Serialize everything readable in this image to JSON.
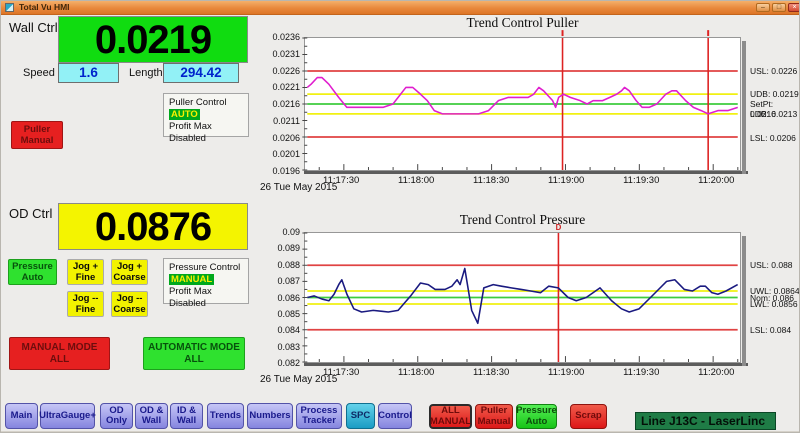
{
  "window": {
    "title": "Total Vu HMI",
    "controls": {
      "minimize": "–",
      "restore": "□",
      "close": "×"
    }
  },
  "wall": {
    "label": "Wall Ctrl",
    "value": "0.0219",
    "speed_label": "Speed",
    "speed_value": "1.6",
    "length_label": "Length",
    "length_value": "294.42",
    "control_box": {
      "title": "Puller Control",
      "mode": "AUTO",
      "note": "Profit Max Disabled"
    },
    "manual_button": "Puller\nManual"
  },
  "od": {
    "label": "OD Ctrl",
    "value": "0.0876",
    "auto_button": "Pressure\nAuto",
    "jog_buttons": [
      "Jog +\nFine",
      "Jog +\nCoarse",
      "Jog --\nFine",
      "Jog --\nCoarse"
    ],
    "control_box": {
      "title": "Pressure Control",
      "mode": "MANUAL",
      "note": "Profit Max Disabled"
    }
  },
  "mode_buttons": {
    "manual_all": "MANUAL MODE\nALL",
    "automatic_all": "AUTOMATIC MODE\nALL"
  },
  "chart_data": [
    {
      "type": "line",
      "title": "Trend Control Puller",
      "date_label": "26 Tue May 2015",
      "ylim": [
        0.0196,
        0.0236
      ],
      "yticks": [
        "0.0236",
        "0.0231",
        "0.0226",
        "0.0221",
        "0.0216",
        "0.0211",
        "0.0206",
        "0.0201",
        "0.0196"
      ],
      "xticks": [
        {
          "label": "11:17:30",
          "f": 0.085
        },
        {
          "label": "11:18:00",
          "f": 0.2566
        },
        {
          "label": "11:18:30",
          "f": 0.4283
        },
        {
          "label": "11:19:00",
          "f": 0.6
        },
        {
          "label": "11:19:30",
          "f": 0.7717
        },
        {
          "label": "11:20:00",
          "f": 0.9434
        }
      ],
      "ref_lines": [
        {
          "name": "USL",
          "value": 0.0226,
          "color": "red"
        },
        {
          "name": "UDB",
          "value": 0.0219,
          "color": "yellow"
        },
        {
          "name": "SetPt",
          "value": 0.0216,
          "color": "green"
        },
        {
          "name": "LDB",
          "value": 0.0213,
          "color": "yellow"
        },
        {
          "name": "LSL",
          "value": 0.0206,
          "color": "red"
        }
      ],
      "right_labels": [
        {
          "text": "USL: 0.0226",
          "value": 0.0226
        },
        {
          "text": "UDB: 0.0219",
          "value": 0.0219
        },
        {
          "text": "SetPt: 0.0216",
          "value": 0.0216
        },
        {
          "text": "LDB: 0.0213",
          "value": 0.0213
        },
        {
          "text": "LSL: 0.0206",
          "value": 0.0206
        }
      ],
      "cursors": [
        {
          "f": 0.593,
          "label": ""
        },
        {
          "f": 0.9313,
          "label": ""
        }
      ],
      "series": [
        {
          "name": "Wall",
          "color": "#e01ece",
          "points": [
            [
              0.0,
              0.0221
            ],
            [
              0.009,
              0.0222
            ],
            [
              0.023,
              0.0224
            ],
            [
              0.034,
              0.0224
            ],
            [
              0.05,
              0.0222
            ],
            [
              0.073,
              0.0218
            ],
            [
              0.092,
              0.0215
            ],
            [
              0.114,
              0.0215
            ],
            [
              0.147,
              0.0215
            ],
            [
              0.176,
              0.0215
            ],
            [
              0.199,
              0.0216
            ],
            [
              0.229,
              0.0221
            ],
            [
              0.245,
              0.0221
            ],
            [
              0.263,
              0.0219
            ],
            [
              0.279,
              0.0217
            ],
            [
              0.295,
              0.0214
            ],
            [
              0.314,
              0.0213
            ],
            [
              0.359,
              0.0213
            ],
            [
              0.398,
              0.0213
            ],
            [
              0.421,
              0.0214
            ],
            [
              0.444,
              0.0217
            ],
            [
              0.467,
              0.0218
            ],
            [
              0.49,
              0.0218
            ],
            [
              0.513,
              0.0218
            ],
            [
              0.526,
              0.0219
            ],
            [
              0.538,
              0.0221
            ],
            [
              0.549,
              0.022
            ],
            [
              0.57,
              0.0217
            ],
            [
              0.577,
              0.0215
            ],
            [
              0.584,
              0.0218
            ],
            [
              0.595,
              0.0219
            ],
            [
              0.611,
              0.0218
            ],
            [
              0.634,
              0.0217
            ],
            [
              0.65,
              0.0216
            ],
            [
              0.664,
              0.0217
            ],
            [
              0.686,
              0.0217
            ],
            [
              0.703,
              0.0218
            ],
            [
              0.719,
              0.0219
            ],
            [
              0.73,
              0.022
            ],
            [
              0.737,
              0.0221
            ],
            [
              0.748,
              0.022
            ],
            [
              0.764,
              0.0217
            ],
            [
              0.778,
              0.0215
            ],
            [
              0.794,
              0.0215
            ],
            [
              0.812,
              0.0216
            ],
            [
              0.833,
              0.0219
            ],
            [
              0.847,
              0.022
            ],
            [
              0.858,
              0.022
            ],
            [
              0.879,
              0.0217
            ],
            [
              0.897,
              0.0215
            ],
            [
              0.915,
              0.0214
            ],
            [
              0.931,
              0.0213
            ],
            [
              0.954,
              0.0214
            ],
            [
              0.977,
              0.0214
            ],
            [
              1.0,
              0.0215
            ]
          ]
        }
      ]
    },
    {
      "type": "line",
      "title": "Trend Control Pressure",
      "date_label": "26 Tue May 2015",
      "ylim": [
        0.082,
        0.09
      ],
      "yticks": [
        "0.09",
        "0.089",
        "0.088",
        "0.087",
        "0.086",
        "0.085",
        "0.084",
        "0.083",
        "0.082"
      ],
      "xticks": [
        {
          "label": "11:17:30",
          "f": 0.085
        },
        {
          "label": "11:18:00",
          "f": 0.2566
        },
        {
          "label": "11:18:30",
          "f": 0.4283
        },
        {
          "label": "11:19:00",
          "f": 0.6
        },
        {
          "label": "11:19:30",
          "f": 0.7717
        },
        {
          "label": "11:20:00",
          "f": 0.9434
        }
      ],
      "ref_lines": [
        {
          "name": "USL",
          "value": 0.088,
          "color": "red"
        },
        {
          "name": "UWL",
          "value": 0.0864,
          "color": "yellow"
        },
        {
          "name": "Nom",
          "value": 0.086,
          "color": "green"
        },
        {
          "name": "LWL",
          "value": 0.0856,
          "color": "yellow"
        },
        {
          "name": "LSL",
          "value": 0.084,
          "color": "red"
        }
      ],
      "right_labels": [
        {
          "text": "USL: 0.088",
          "value": 0.088
        },
        {
          "text": "UWL: 0.0864",
          "value": 0.0864
        },
        {
          "text": "Nom: 0.086",
          "value": 0.086
        },
        {
          "text": "LWL: 0.0856",
          "value": 0.0856
        },
        {
          "text": "LSL: 0.084",
          "value": 0.084
        }
      ],
      "cursors": [
        {
          "f": 0.5835,
          "label": "D"
        }
      ],
      "series": [
        {
          "name": "Pressure",
          "color": "#1a1a80",
          "points": [
            [
              0.0,
              0.086
            ],
            [
              0.016,
              0.0861
            ],
            [
              0.034,
              0.0859
            ],
            [
              0.05,
              0.0858
            ],
            [
              0.062,
              0.0862
            ],
            [
              0.073,
              0.0868
            ],
            [
              0.08,
              0.0871
            ],
            [
              0.092,
              0.0862
            ],
            [
              0.108,
              0.0853
            ],
            [
              0.126,
              0.0851
            ],
            [
              0.153,
              0.0852
            ],
            [
              0.188,
              0.0851
            ],
            [
              0.211,
              0.0852
            ],
            [
              0.227,
              0.0857
            ],
            [
              0.24,
              0.0861
            ],
            [
              0.263,
              0.0869
            ],
            [
              0.281,
              0.0868
            ],
            [
              0.297,
              0.0865
            ],
            [
              0.32,
              0.0865
            ],
            [
              0.336,
              0.0867
            ],
            [
              0.348,
              0.0871
            ],
            [
              0.355,
              0.0868
            ],
            [
              0.366,
              0.0878
            ],
            [
              0.382,
              0.0852
            ],
            [
              0.396,
              0.0844
            ],
            [
              0.41,
              0.0866
            ],
            [
              0.432,
              0.0868
            ],
            [
              0.451,
              0.0867
            ],
            [
              0.474,
              0.0866
            ],
            [
              0.497,
              0.0865
            ],
            [
              0.519,
              0.0864
            ],
            [
              0.542,
              0.0863
            ],
            [
              0.561,
              0.0867
            ],
            [
              0.583,
              0.0866
            ],
            [
              0.606,
              0.086
            ],
            [
              0.625,
              0.0858
            ],
            [
              0.648,
              0.086
            ],
            [
              0.68,
              0.0866
            ],
            [
              0.707,
              0.0858
            ],
            [
              0.73,
              0.0853
            ],
            [
              0.748,
              0.0851
            ],
            [
              0.771,
              0.0853
            ],
            [
              0.805,
              0.0862
            ],
            [
              0.835,
              0.087
            ],
            [
              0.854,
              0.0871
            ],
            [
              0.876,
              0.0865
            ],
            [
              0.895,
              0.0864
            ],
            [
              0.913,
              0.0867
            ],
            [
              0.925,
              0.0867
            ],
            [
              0.94,
              0.0863
            ],
            [
              0.954,
              0.0862
            ],
            [
              0.973,
              0.0864
            ],
            [
              1.0,
              0.0868
            ]
          ]
        }
      ]
    }
  ],
  "toolbar": {
    "nav": [
      {
        "label": "Main"
      },
      {
        "label": "UltraGauge+"
      },
      {
        "label": "OD\nOnly"
      },
      {
        "label": "OD &\nWall"
      },
      {
        "label": "ID &\nWall"
      },
      {
        "label": "Trends"
      },
      {
        "label": "Numbers"
      },
      {
        "label": "Process\nTracker"
      },
      {
        "label": "SPC",
        "active": true
      },
      {
        "label": "Control"
      }
    ],
    "actions": [
      {
        "label": "ALL\nMANUAL",
        "style": "red",
        "pressed": true
      },
      {
        "label": "Puller\nManual",
        "style": "red"
      },
      {
        "label": "Pressure\nAuto",
        "style": "green"
      },
      {
        "label": "Scrap",
        "style": "red"
      }
    ],
    "line_label": "Line J13C - LaserLinc"
  }
}
